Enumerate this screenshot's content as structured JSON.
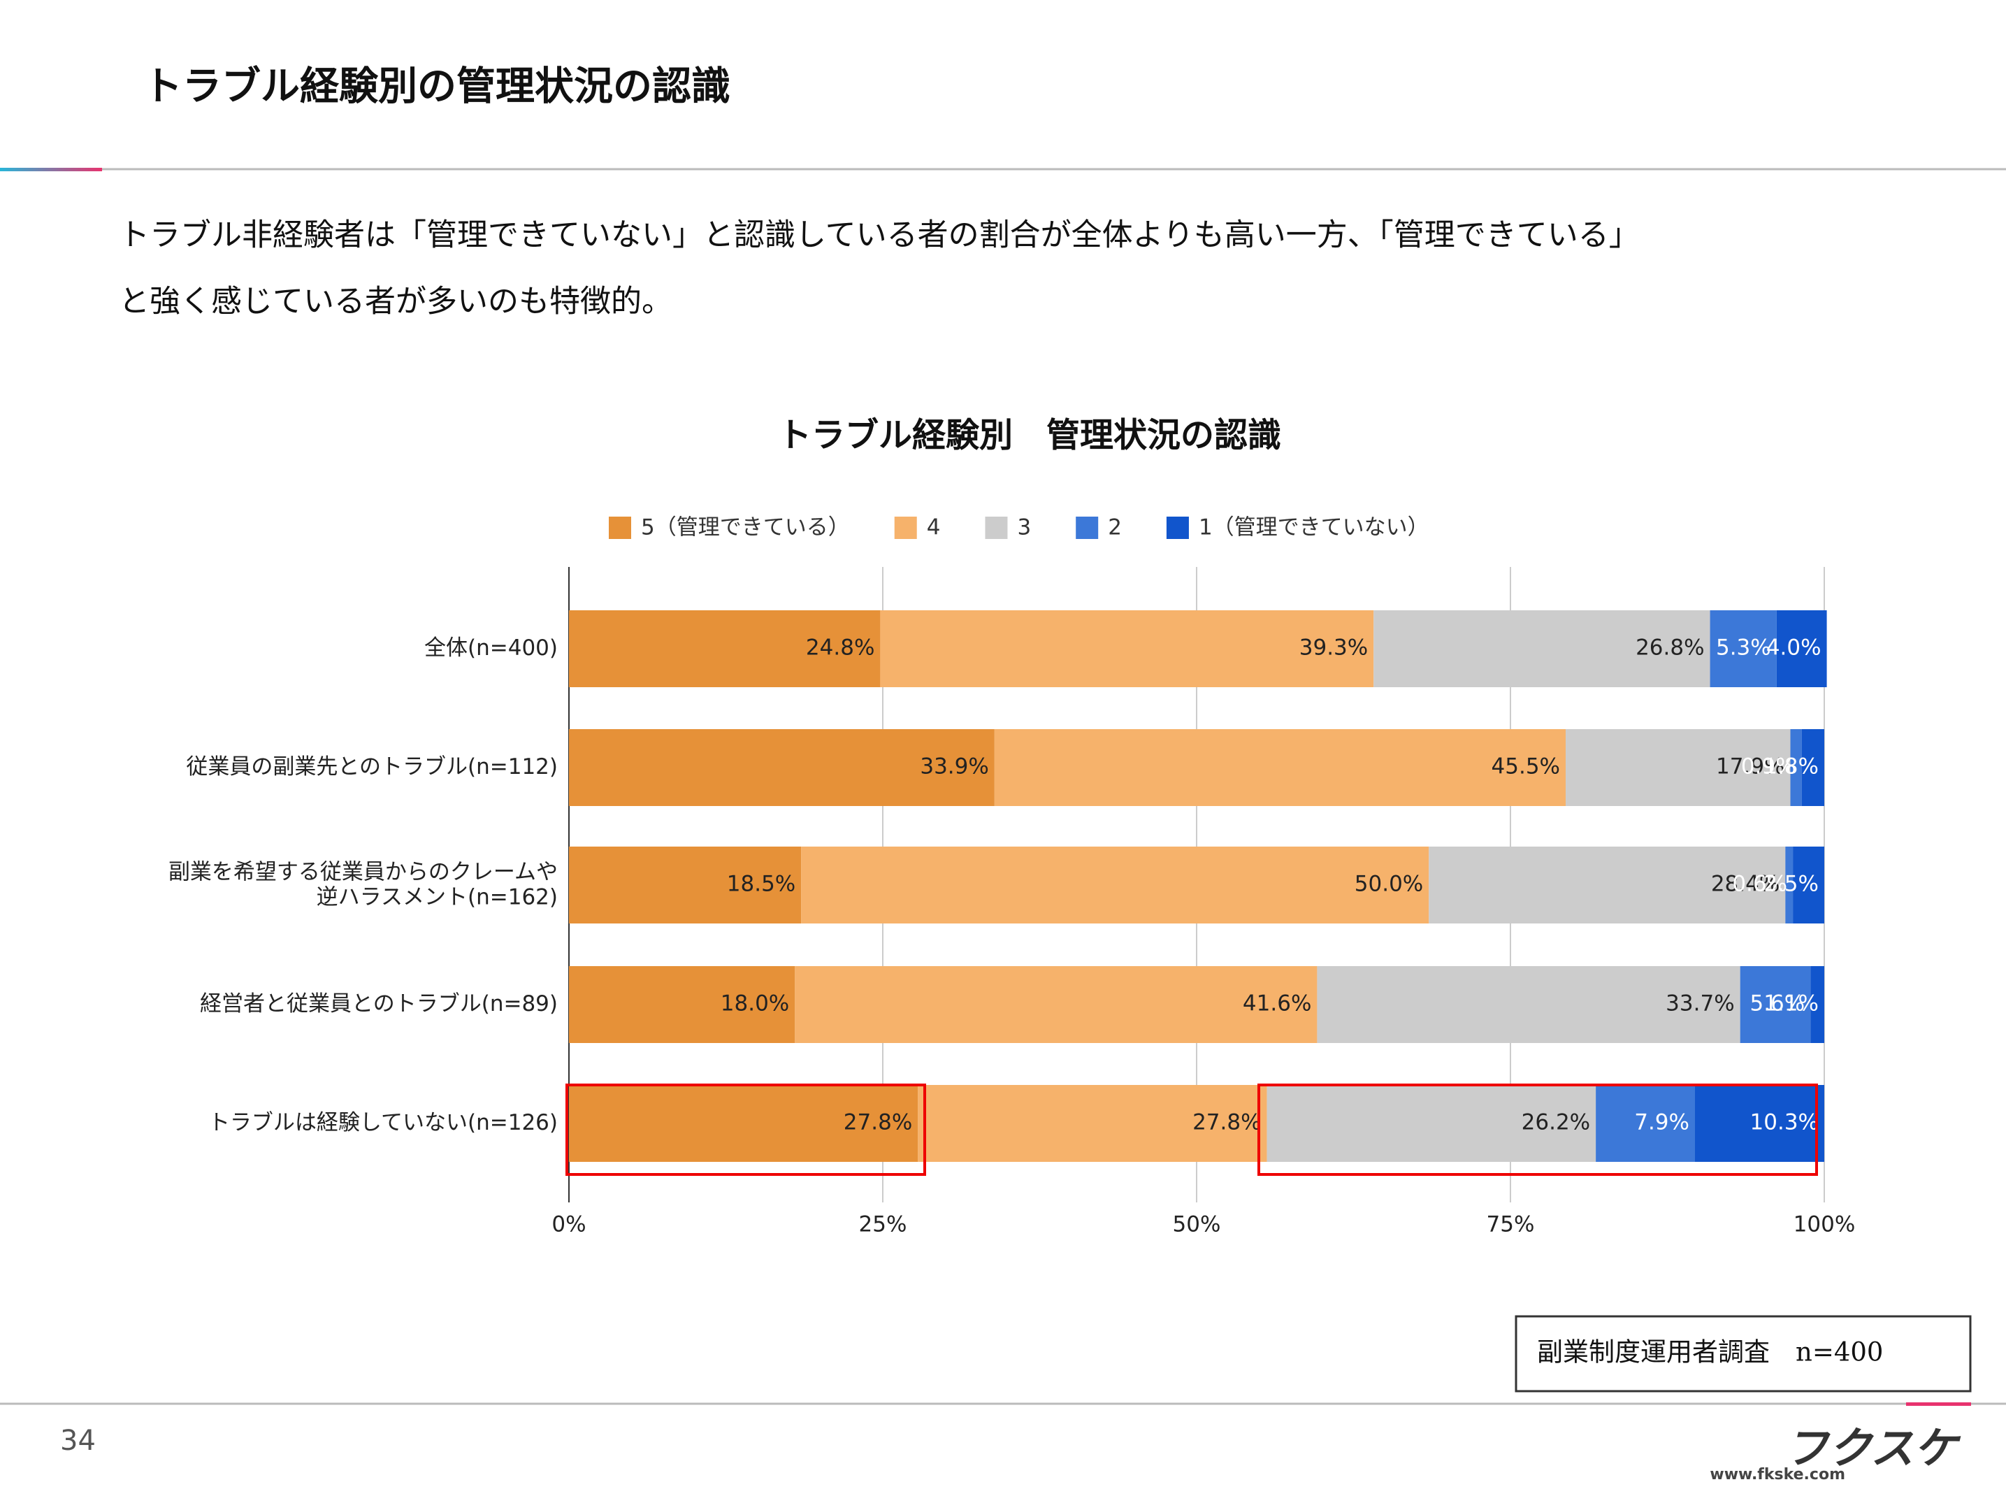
{
  "header": {
    "title": "トラブル経験別の管理状況の認識"
  },
  "description": [
    "トラブル非経験者は「管理できていない」と認識している者の割合が全体よりも高い一方、「管理できている」",
    "と強く感じている者が多いのも特徴的。"
  ],
  "chart_data": {
    "type": "bar",
    "orientation": "horizontal",
    "stacked": true,
    "title": "トラブル経験別　管理状況の認識",
    "categories": [
      "全体(n=400)",
      "従業員の副業先とのトラブル(n=112)",
      "副業を希望する従業員からのクレームや逆ハラスメント(n=162)",
      "経営者と従業員とのトラブル(n=89)",
      "トラブルは経験していない(n=126)"
    ],
    "series": [
      {
        "name": "5（管理できている）",
        "color": "#e69138",
        "values": [
          24.8,
          33.9,
          18.5,
          18.0,
          27.8
        ],
        "value_labels": [
          "24.8%",
          "33.9%",
          "18.5%",
          "18.0%",
          "27.8%"
        ]
      },
      {
        "name": "4",
        "color": "#f6b26b",
        "values": [
          39.3,
          45.5,
          50.0,
          41.6,
          27.8
        ],
        "value_labels": [
          "39.3%",
          "45.5%",
          "50.0%",
          "41.6%",
          "27.8%"
        ]
      },
      {
        "name": "3",
        "color": "#cccccc",
        "values": [
          26.8,
          17.9,
          28.4,
          33.7,
          26.2
        ],
        "value_labels": [
          "26.8%",
          "17.9%",
          "28.4%",
          "33.7%",
          "26.2%"
        ]
      },
      {
        "name": "2",
        "color": "#3c78d8",
        "values": [
          5.3,
          0.9,
          0.6,
          5.6,
          7.9
        ],
        "value_labels": [
          "5.3%",
          "0.9%",
          "0.6%",
          "5.6%",
          "7.9%"
        ]
      },
      {
        "name": "1（管理できていない）",
        "color": "#1155cc",
        "values": [
          4.0,
          1.8,
          2.5,
          1.1,
          10.3
        ],
        "value_labels": [
          "4.0%",
          "1.8%",
          "2.5%",
          "1.1%",
          "10.3%"
        ]
      }
    ],
    "xlim": [
      0,
      100
    ],
    "xticks": [
      {
        "value": 0,
        "label": "0%"
      },
      {
        "value": 25,
        "label": "25%"
      },
      {
        "value": 50,
        "label": "50%"
      },
      {
        "value": 75,
        "label": "75%"
      },
      {
        "value": 100,
        "label": "100%"
      }
    ],
    "grid": true,
    "legend": "top"
  },
  "note": "副業制度運用者調査　n=400",
  "footer": {
    "page": "34",
    "url": "www.fkske.com",
    "logo": "フクスケ"
  }
}
